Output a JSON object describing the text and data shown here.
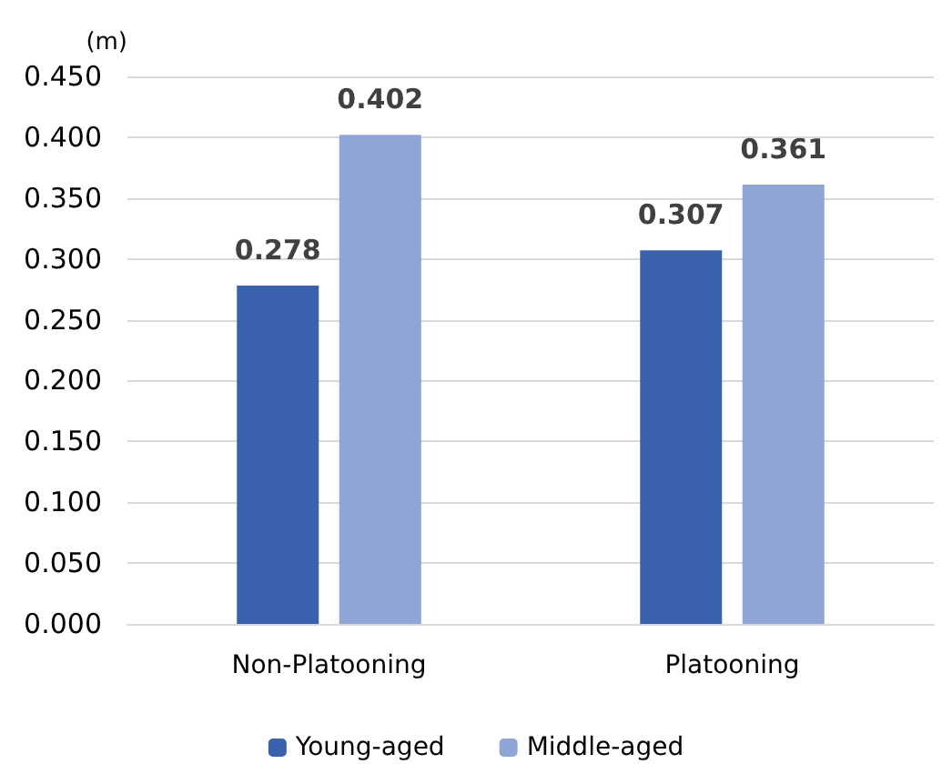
{
  "chart_data": {
    "type": "bar",
    "ylabel": "(m)",
    "categories": [
      "Non-Platooning",
      "Platooning"
    ],
    "series": [
      {
        "name": "Young-aged",
        "color": "#3a62ac",
        "values": [
          0.278,
          0.307
        ]
      },
      {
        "name": "Middle-aged",
        "color": "#8fa5d6",
        "values": [
          0.402,
          0.361
        ]
      }
    ],
    "ylim": [
      0,
      0.45
    ],
    "yticks": [
      {
        "value": 0,
        "label": "0.000"
      },
      {
        "value": 0.05,
        "label": "0.050"
      },
      {
        "value": 0.1,
        "label": "0.100"
      },
      {
        "value": 0.15,
        "label": "0.150"
      },
      {
        "value": 0.2,
        "label": "0.200"
      },
      {
        "value": 0.25,
        "label": "0.250"
      },
      {
        "value": 0.3,
        "label": "0.300"
      },
      {
        "value": 0.35,
        "label": "0.350"
      },
      {
        "value": 0.4,
        "label": "0.400"
      },
      {
        "value": 0.45,
        "label": "0.450"
      }
    ],
    "grid": "y",
    "legend": "bottom",
    "data_labels": true
  }
}
